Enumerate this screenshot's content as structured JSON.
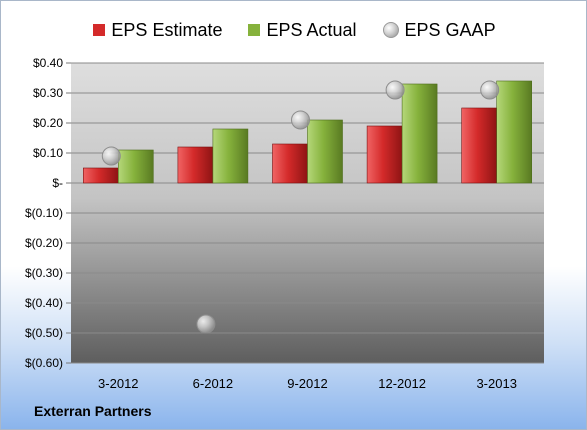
{
  "company": "Exterran Partners",
  "colors": {
    "estimate": "#d42a2a",
    "actual": "#86b23c",
    "gaap": "#b4b4b4"
  },
  "legend": {
    "estimate": "EPS Estimate",
    "actual": "EPS Actual",
    "gaap": "EPS GAAP"
  },
  "chart_data": {
    "type": "bar",
    "categories": [
      "3-2012",
      "6-2012",
      "9-2012",
      "12-2012",
      "3-2013"
    ],
    "series": [
      {
        "name": "EPS Estimate",
        "values": [
          0.05,
          0.12,
          0.13,
          0.19,
          0.25
        ]
      },
      {
        "name": "EPS Actual",
        "values": [
          0.11,
          0.18,
          0.21,
          0.33,
          0.34
        ]
      },
      {
        "name": "EPS GAAP",
        "marker": "circle",
        "values": [
          0.09,
          -0.47,
          0.21,
          0.31,
          0.31
        ]
      }
    ],
    "ylim": [
      -0.6,
      0.4
    ],
    "yticks": [
      0.4,
      0.3,
      0.2,
      0.1,
      0,
      -0.1,
      -0.2,
      -0.3,
      -0.4,
      -0.5,
      -0.6
    ],
    "ytick_labels": [
      "$0.40",
      "$0.30",
      "$0.20",
      "$0.10",
      "$-",
      "$(0.10)",
      "$(0.20)",
      "$(0.30)",
      "$(0.40)",
      "$(0.50)",
      "$(0.60)"
    ],
    "grid": true,
    "legend_position": "top"
  }
}
